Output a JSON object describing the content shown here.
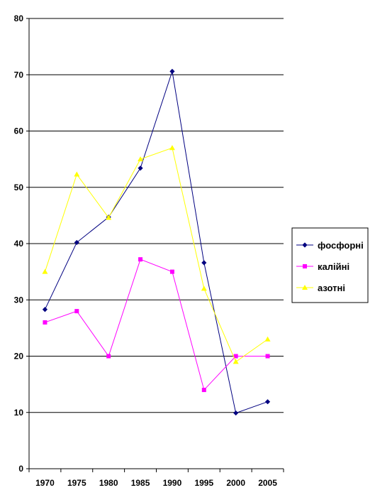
{
  "chart_data": {
    "type": "line",
    "categories": [
      "1970",
      "1975",
      "1980",
      "1985",
      "1990",
      "1995",
      "2000",
      "2005"
    ],
    "ylim": [
      0,
      80
    ],
    "yticks": [
      0,
      10,
      20,
      30,
      40,
      50,
      60,
      70,
      80
    ],
    "grid": true,
    "legend_position": "right",
    "series": [
      {
        "name": "фосфорні",
        "color": "#000080",
        "marker": "diamond",
        "values": [
          28.3,
          40.2,
          44.7,
          53.4,
          70.6,
          36.6,
          9.9,
          11.9
        ]
      },
      {
        "name": "калійні",
        "color": "#ff00ff",
        "marker": "square",
        "values": [
          26.0,
          28.0,
          20.0,
          37.2,
          35.0,
          14.0,
          20.0,
          20.0
        ]
      },
      {
        "name": "азотні",
        "color": "#ffff00",
        "marker": "triangle",
        "values": [
          35.0,
          52.3,
          44.6,
          55.0,
          57.0,
          32.0,
          19.0,
          23.0
        ]
      }
    ]
  }
}
